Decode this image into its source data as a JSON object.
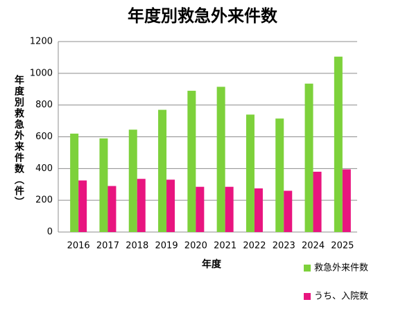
{
  "chart_data": {
    "type": "bar",
    "title": "年度別救急外来件数",
    "y_label": "年度別救急外来件数（件）",
    "x_label": "年度",
    "categories": [
      "2016",
      "2017",
      "2018",
      "2019",
      "2020",
      "2021",
      "2022",
      "2023",
      "2024",
      "2025"
    ],
    "series": [
      {
        "name": "救急外来件数",
        "color": "#7dd13b",
        "values": [
          620,
          590,
          645,
          770,
          890,
          915,
          740,
          715,
          935,
          1105
        ]
      },
      {
        "name": "うち、入院数",
        "color": "#e8157f",
        "values": [
          325,
          290,
          335,
          330,
          285,
          285,
          275,
          260,
          380,
          395
        ]
      }
    ],
    "ylim": [
      0,
      1200
    ],
    "yticks": [
      0,
      200,
      400,
      600,
      800,
      1000,
      1200
    ],
    "grid": true,
    "legend": "right-bottom"
  }
}
